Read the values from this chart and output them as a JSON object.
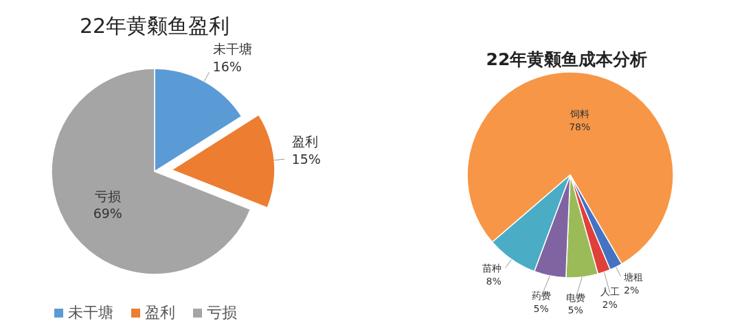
{
  "chart_data": [
    {
      "type": "pie",
      "title": "22年黄颡鱼盈利",
      "categories": [
        "未干塘",
        "盈利",
        "亏损"
      ],
      "values": [
        16,
        15,
        69
      ],
      "value_labels": [
        "16%",
        "15%",
        "69%"
      ],
      "colors": [
        "#5b9bd5",
        "#ed7d31",
        "#a5a5a5"
      ],
      "legend": "bottom"
    },
    {
      "type": "pie",
      "title": "22年黄颡鱼成本分析",
      "categories": [
        "饲料",
        "塘租",
        "人工",
        "电费",
        "药费",
        "苗种"
      ],
      "values": [
        78,
        2,
        2,
        5,
        5,
        8
      ],
      "value_labels": [
        "78%",
        "2%",
        "2%",
        "5%",
        "5%",
        "8%"
      ],
      "colors": [
        "#f79646",
        "#4472c4",
        "#e0403a",
        "#9bbb59",
        "#8064a2",
        "#4bacc6"
      ],
      "legend": false
    }
  ]
}
